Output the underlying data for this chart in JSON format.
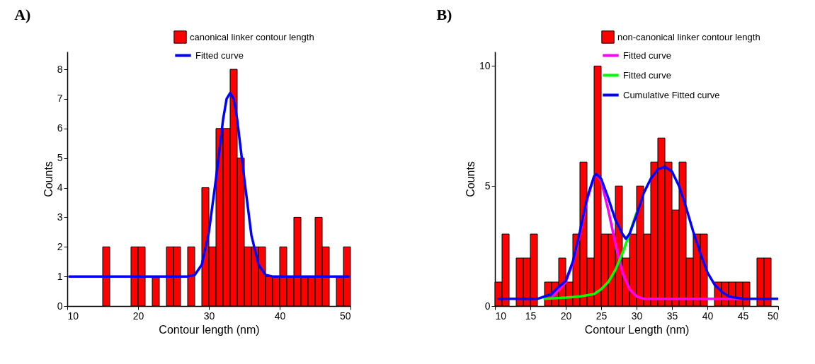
{
  "chart_data": [
    {
      "type": "histogram",
      "title": "A)",
      "xlabel": "Contour length (nm)",
      "ylabel": "Counts",
      "bins": [
        10,
        11,
        12,
        13,
        14,
        15,
        16,
        17,
        18,
        19,
        20,
        21,
        22,
        23,
        24,
        25,
        26,
        27,
        28,
        29,
        30,
        31,
        32,
        33,
        34,
        35,
        36,
        37,
        38,
        39,
        40,
        41,
        42,
        43,
        44,
        45,
        46,
        47,
        48,
        49,
        50
      ],
      "series": [
        {
          "type": "histogram",
          "name": "canonical linker contour length",
          "color": "#ff0000",
          "values": [
            0,
            0,
            0,
            0,
            0,
            2,
            0,
            0,
            0,
            2,
            2,
            0,
            1,
            0,
            2,
            2,
            0,
            2,
            0,
            4,
            2,
            6,
            6,
            8,
            5,
            2,
            2,
            2,
            1,
            1,
            2,
            1,
            3,
            1,
            1,
            3,
            2,
            0,
            1,
            2
          ]
        },
        {
          "type": "line",
          "name": "Fitted curve",
          "color": "#0000ff",
          "x": [
            10.3,
            27,
            28,
            29,
            30,
            31,
            32,
            32.5,
            33,
            33.5,
            34,
            35,
            36,
            37,
            38,
            39,
            49.7
          ],
          "values": [
            1,
            1,
            1.05,
            1.4,
            2.5,
            4.3,
            6.3,
            7.0,
            7.2,
            7.0,
            6.3,
            4.3,
            2.4,
            1.4,
            1.05,
            1,
            1
          ]
        }
      ],
      "xlim": [
        10,
        50
      ],
      "xticks": [
        10,
        20,
        30,
        40,
        50
      ],
      "ylim": [
        0,
        8.6
      ],
      "yticks": [
        0,
        1,
        2,
        3,
        4,
        5,
        6,
        7,
        8
      ],
      "grid": false,
      "legend": "top right",
      "marker": "none",
      "line_style": "solid"
    },
    {
      "type": "histogram",
      "title": "B)",
      "xlabel": "Contour Length (nm)",
      "ylabel": "Counts",
      "bins": [
        10,
        11,
        12,
        13,
        14,
        15,
        16,
        17,
        18,
        19,
        20,
        21,
        22,
        23,
        24,
        25,
        26,
        27,
        28,
        29,
        30,
        31,
        32,
        33,
        34,
        35,
        36,
        37,
        38,
        39,
        40,
        41,
        42,
        43,
        44,
        45,
        46,
        47,
        48,
        49,
        50
      ],
      "series": [
        {
          "type": "histogram",
          "name": "non-canonical linker contour length",
          "color": "#ff0000",
          "values": [
            1,
            3,
            0,
            2,
            2,
            3,
            0,
            1,
            1,
            2,
            1,
            3,
            6,
            2,
            10,
            3,
            3,
            5,
            2,
            3,
            5,
            3,
            6,
            7,
            6,
            4,
            6,
            2,
            3,
            3,
            0,
            1,
            1,
            1,
            1,
            1,
            0,
            2,
            2,
            0
          ]
        },
        {
          "type": "line",
          "name": "Fitted curve",
          "color": "#ff00ff",
          "x": [
            18,
            20,
            21,
            22,
            23,
            24,
            24.3,
            25,
            26,
            27,
            28,
            29,
            30,
            31,
            45
          ],
          "values": [
            0.35,
            1.0,
            1.8,
            3.0,
            4.4,
            5.4,
            5.5,
            5.2,
            4.0,
            2.6,
            1.4,
            0.7,
            0.4,
            0.3,
            0.3
          ]
        },
        {
          "type": "line",
          "name": "Fitted curve",
          "color": "#00ff00",
          "x": [
            17,
            20,
            22,
            24,
            25,
            26,
            27,
            28,
            29,
            30
          ],
          "values": [
            0.3,
            0.35,
            0.4,
            0.5,
            0.7,
            1.0,
            1.5,
            2.2,
            3.0,
            3.9
          ]
        },
        {
          "type": "line",
          "name": "Cumulative Fitted curve",
          "color": "#0000ff",
          "x": [
            10.5,
            16,
            18,
            19,
            20,
            21,
            22,
            23,
            24,
            24.3,
            25,
            26,
            27,
            28,
            28.5,
            29,
            30,
            31,
            32,
            33,
            34,
            35,
            36,
            37,
            38,
            39,
            40,
            41,
            42,
            43,
            45,
            50
          ],
          "values": [
            0.3,
            0.3,
            0.5,
            0.8,
            1.05,
            1.85,
            3.1,
            4.5,
            5.4,
            5.5,
            5.3,
            4.5,
            3.6,
            3.0,
            2.8,
            3.0,
            3.8,
            4.7,
            5.3,
            5.7,
            5.8,
            5.6,
            5.0,
            4.1,
            3.1,
            2.2,
            1.4,
            0.9,
            0.6,
            0.4,
            0.3,
            0.3
          ]
        }
      ],
      "xlim": [
        10,
        50
      ],
      "xticks": [
        10,
        15,
        20,
        25,
        30,
        35,
        40,
        45,
        50
      ],
      "ylim": [
        0,
        10.6
      ],
      "yticks": [
        0,
        5,
        10
      ],
      "grid": false,
      "legend": "top right",
      "marker": "none",
      "line_style": "solid"
    }
  ]
}
